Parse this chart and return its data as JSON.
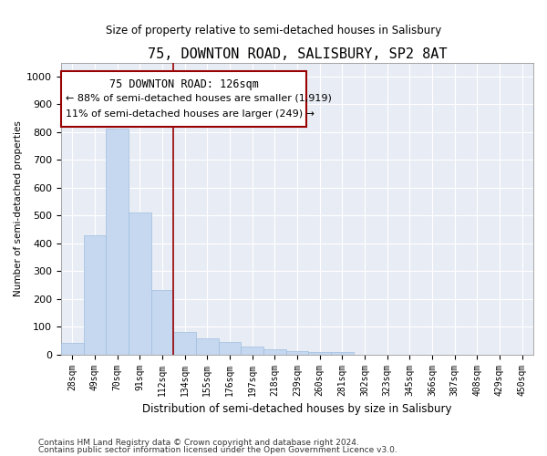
{
  "title": "75, DOWNTON ROAD, SALISBURY, SP2 8AT",
  "subtitle": "Size of property relative to semi-detached houses in Salisbury",
  "xlabel": "Distribution of semi-detached houses by size in Salisbury",
  "ylabel": "Number of semi-detached properties",
  "footer_line1": "Contains HM Land Registry data © Crown copyright and database right 2024.",
  "footer_line2": "Contains public sector information licensed under the Open Government Licence v3.0.",
  "annotation_line1": "75 DOWNTON ROAD: 126sqm",
  "annotation_line2": "← 88% of semi-detached houses are smaller (1,919)",
  "annotation_line3": "11% of semi-detached houses are larger (249) →",
  "bar_color": "#c5d8f0",
  "bar_edge_color": "#a0bedd",
  "background_color": "#e8edf5",
  "grid_color": "#ffffff",
  "annotation_box_color": "#ffffff",
  "annotation_box_edge": "#990000",
  "vline_color": "#990000",
  "fig_background": "#ffffff",
  "categories": [
    "28sqm",
    "49sqm",
    "70sqm",
    "91sqm",
    "112sqm",
    "134sqm",
    "155sqm",
    "176sqm",
    "197sqm",
    "218sqm",
    "239sqm",
    "260sqm",
    "281sqm",
    "302sqm",
    "323sqm",
    "345sqm",
    "366sqm",
    "387sqm",
    "408sqm",
    "429sqm",
    "450sqm"
  ],
  "values": [
    42,
    430,
    813,
    510,
    232,
    80,
    57,
    44,
    28,
    20,
    12,
    9,
    10,
    0,
    0,
    0,
    0,
    0,
    0,
    0,
    0
  ],
  "vline_x": 4.5,
  "ylim": [
    0,
    1050
  ],
  "yticks": [
    0,
    100,
    200,
    300,
    400,
    500,
    600,
    700,
    800,
    900,
    1000
  ]
}
